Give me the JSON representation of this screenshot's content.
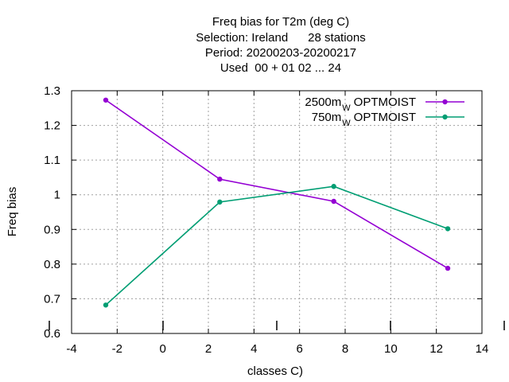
{
  "chart_data": {
    "type": "line",
    "title_lines": [
      "Freq bias  for T2m (deg C)",
      "Selection: Ireland      28 stations",
      "Period: 20200203-20200217",
      "Used  00 + 01 02 ... 24"
    ],
    "xlabel": "classes C)",
    "ylabel": "Freq bias",
    "xlim": [
      -4,
      14
    ],
    "ylim": [
      0.6,
      1.3
    ],
    "xticks": [
      "-4",
      "-2",
      "0",
      "2",
      "4",
      "6",
      "8",
      "10",
      "12",
      "14"
    ],
    "yticks": [
      "0.6",
      "0.7",
      "0.8",
      "0.9",
      "1",
      "1.1",
      "1.2",
      "1.3"
    ],
    "grid": true,
    "legend_position": "top-right",
    "series": [
      {
        "name": "2500m",
        "name_sub": "W",
        "name_suffix": "OPTMOIST",
        "color": "#9400d3",
        "x": [
          -2.5,
          2.5,
          7.5,
          12.5
        ],
        "y": [
          1.273,
          1.045,
          0.981,
          0.788
        ]
      },
      {
        "name": "750m",
        "name_sub": "W",
        "name_suffix": "OPTMOIST",
        "color": "#009e73",
        "x": [
          -2.5,
          2.5,
          7.5,
          12.5
        ],
        "y": [
          0.682,
          0.979,
          1.024,
          0.902
        ]
      }
    ]
  }
}
